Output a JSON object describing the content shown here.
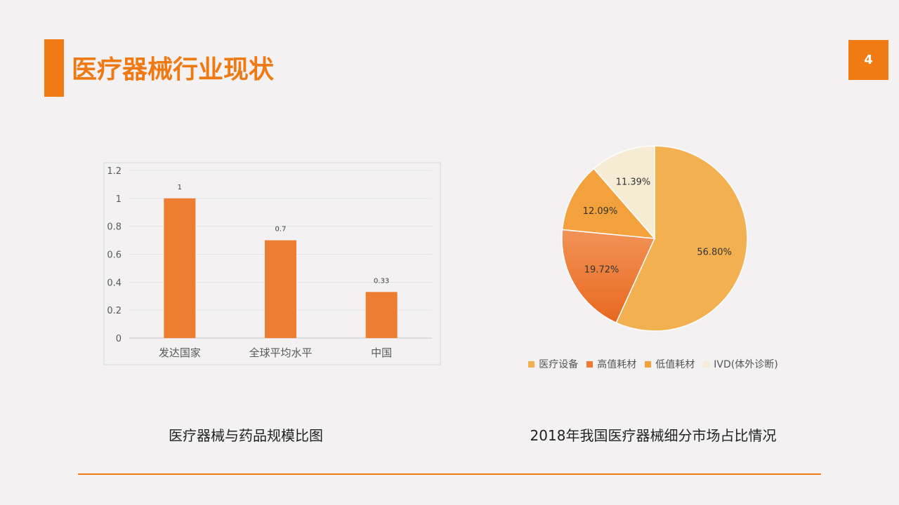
{
  "page": {
    "title": "医疗器械行业现状",
    "page_number": "4",
    "accent_color": "#f07b12"
  },
  "chart_data": [
    {
      "type": "bar",
      "categories": [
        "发达国家",
        "全球平均水平",
        "中国"
      ],
      "values": [
        1,
        0.7,
        0.33
      ],
      "value_labels": [
        "1",
        "0.7",
        "0.33"
      ],
      "ylim": [
        0,
        1.2
      ],
      "y_ticks": [
        "0",
        "0.2",
        "0.4",
        "0.6",
        "0.8",
        "1",
        "1.2"
      ],
      "grid": true,
      "bar_color": "#ed7d31",
      "caption": "医疗器械与药品规模比图"
    },
    {
      "type": "pie",
      "labels": [
        "医疗设备",
        "高值耗材",
        "低值耗材",
        "IVD(体外诊断)"
      ],
      "values": [
        56.8,
        19.72,
        12.09,
        11.39
      ],
      "value_labels": [
        "56.80%",
        "19.72%",
        "12.09%",
        "11.39%"
      ],
      "colors": [
        "#f2b050",
        "#ef7a30",
        "#f3a13c",
        "#f5ecd3"
      ],
      "legend_position": "bottom",
      "caption": "2018年我国医疗器械细分市场占比情况"
    }
  ]
}
